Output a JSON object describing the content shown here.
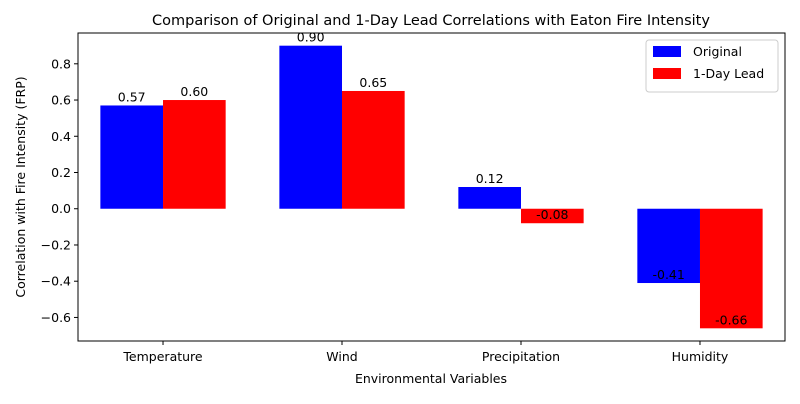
{
  "chart_data": {
    "type": "bar",
    "title": "Comparison of Original and 1-Day Lead Correlations with Eaton Fire Intensity",
    "xlabel": "Environmental Variables",
    "ylabel": "Correlation with Fire Intensity (FRP)",
    "categories": [
      "Temperature",
      "Wind",
      "Precipitation",
      "Humidity"
    ],
    "series": [
      {
        "name": "Original",
        "color": "#0000ff",
        "values": [
          0.57,
          0.9,
          0.12,
          -0.41
        ],
        "labels": [
          "0.57",
          "0.90",
          "0.12",
          "-0.41"
        ]
      },
      {
        "name": "1-Day Lead",
        "color": "#ff0000",
        "values": [
          0.6,
          0.65,
          -0.08,
          -0.66
        ],
        "labels": [
          "0.60",
          "0.65",
          "-0.08",
          "-0.66"
        ]
      }
    ],
    "ylim": [
      -0.73,
      0.97
    ],
    "yticks": [
      -0.6,
      -0.4,
      -0.2,
      0.0,
      0.2,
      0.4,
      0.6,
      0.8
    ],
    "ytick_labels": [
      "−0.6",
      "−0.4",
      "−0.2",
      "0.0",
      "0.2",
      "0.4",
      "0.6",
      "0.8"
    ],
    "grid": false,
    "legend_position": "top-right"
  }
}
